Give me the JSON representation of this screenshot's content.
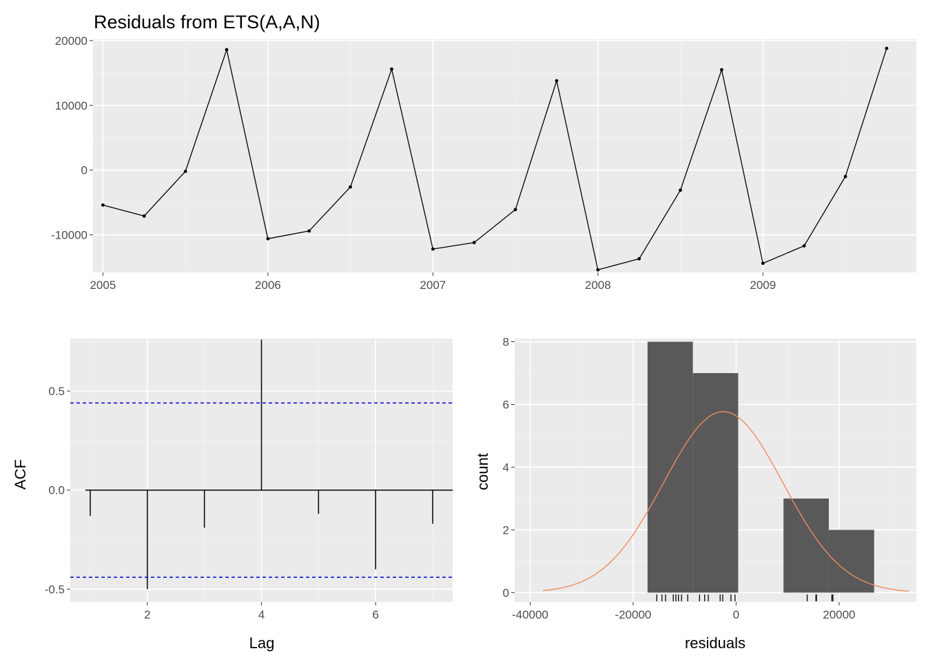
{
  "colors": {
    "panel_bg": "#ebebeb",
    "grid_major": "#ffffff",
    "grid_minor": "#f5f5f5",
    "line": "#000000",
    "bar_fill": "#595959",
    "ci_line": "#0000cc",
    "density": "#f08a5d"
  },
  "chart_data": [
    {
      "type": "line",
      "title": "Residuals from ETS(A,A,N)",
      "xlabel": "",
      "ylabel": "",
      "x_ticks": [
        "2005",
        "2006",
        "2007",
        "2008",
        "2009"
      ],
      "y_ticks": [
        "20000",
        "10000",
        "0",
        "-10000"
      ],
      "xlim": [
        2004.94,
        2009.93
      ],
      "ylim": [
        -15800,
        20200
      ],
      "grid": true,
      "x": [
        2005.0,
        2005.25,
        2005.5,
        2005.75,
        2006.0,
        2006.25,
        2006.5,
        2006.75,
        2007.0,
        2007.25,
        2007.5,
        2007.75,
        2008.0,
        2008.25,
        2008.5,
        2008.75,
        2009.0,
        2009.25,
        2009.5,
        2009.75
      ],
      "values": [
        -5400,
        -7100,
        -200,
        18600,
        -10600,
        -9400,
        -2600,
        15600,
        -12200,
        -11200,
        -6100,
        13800,
        -15400,
        -13700,
        -3100,
        15500,
        -14400,
        -11700,
        -1000,
        18800
      ]
    },
    {
      "type": "bar",
      "title": "",
      "xlabel": "Lag",
      "ylabel": "ACF",
      "x_ticks": [
        "2",
        "4",
        "6"
      ],
      "y_ticks": [
        "0.5",
        "0.0",
        "-0.5"
      ],
      "xlim": [
        0.65,
        7.35
      ],
      "ylim": [
        -0.565,
        0.765
      ],
      "grid": true,
      "lags": [
        1,
        2,
        3,
        4,
        5,
        6,
        7
      ],
      "values": [
        -0.13,
        -0.5,
        -0.19,
        0.76,
        -0.12,
        -0.4,
        -0.17
      ],
      "ci": [
        0.44,
        -0.44
      ]
    },
    {
      "type": "histogram",
      "title": "",
      "xlabel": "residuals",
      "ylabel": "count",
      "x_ticks": [
        "-40000",
        "-20000",
        "0",
        "20000"
      ],
      "y_ticks": [
        "8",
        "6",
        "4",
        "2",
        "0"
      ],
      "xlim": [
        -43000,
        35000
      ],
      "ylim": [
        -0.3,
        8.1
      ],
      "grid": true,
      "bins": [
        {
          "x0": -17200,
          "x1": -8400,
          "count": 8
        },
        {
          "x0": -8400,
          "x1": 400,
          "count": 7
        },
        {
          "x0": 400,
          "x1": 9200,
          "count": 0
        },
        {
          "x0": 9200,
          "x1": 18000,
          "count": 3
        },
        {
          "x0": 18000,
          "x1": 26800,
          "count": 2
        }
      ],
      "density": {
        "mean": -2500,
        "sd": 11600,
        "peak_count": 5.77,
        "from": -37500,
        "to": 33500
      },
      "rug": [
        -15400,
        -14400,
        -13700,
        -12200,
        -11700,
        -11200,
        -10600,
        -9400,
        -7100,
        -6100,
        -5400,
        -3100,
        -2600,
        -1000,
        -200,
        13800,
        15500,
        15600,
        18600,
        18800
      ]
    }
  ]
}
